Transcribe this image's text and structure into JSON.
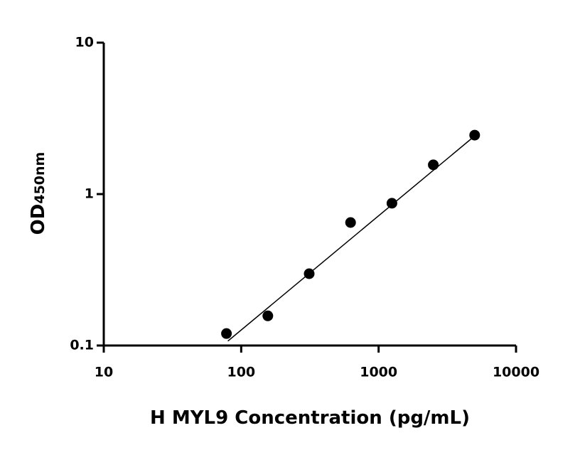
{
  "chart_data": {
    "type": "scatter",
    "xlabel": "H MYL9 Concentration (pg/mL)",
    "ylabel": "OD",
    "ylabel_sub": "450nm",
    "xscale": "log",
    "yscale": "log",
    "xlim": [
      10,
      10000
    ],
    "ylim": [
      0.1,
      10
    ],
    "xticks": [
      10,
      100,
      1000,
      10000
    ],
    "yticks": [
      0.1,
      1,
      10
    ],
    "series": [
      {
        "x": [
          78.125,
          156.25,
          312.5,
          625,
          1250,
          2500,
          5000
        ],
        "values": [
          0.12,
          0.157,
          0.298,
          0.649,
          0.87,
          1.56,
          2.45
        ],
        "color": "#000000"
      }
    ],
    "fit": {
      "x": [
        80,
        5000
      ],
      "values": [
        0.107,
        2.42
      ],
      "color": "#000000"
    }
  }
}
